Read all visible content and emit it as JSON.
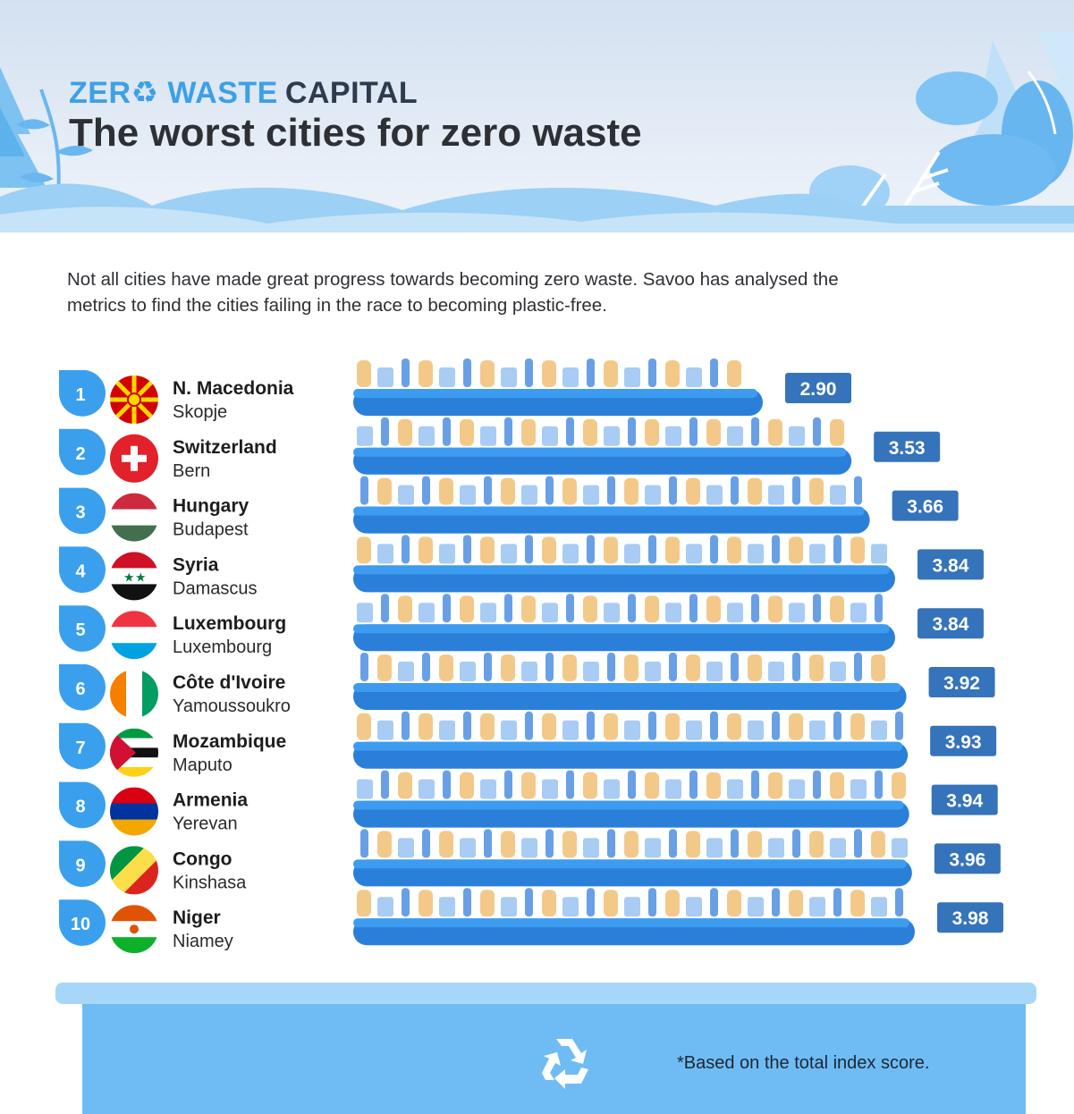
{
  "header": {
    "brand_part1": "ZER♻ WASTE",
    "brand_part2": "CAPITAL",
    "title": "The worst cities for zero waste"
  },
  "intro": {
    "line1": "Not all cities have made great progress towards becoming zero waste. Savoo has analysed the",
    "line2": "metrics to find the cities failing in the race to becoming plastic-free."
  },
  "footnote": "*Based on the total index score.",
  "colors": {
    "bar": "#2a7fd9",
    "bar_highlight": "#3d9cf0",
    "badge": "#3573ba",
    "rank_drop": "#3aa0ee",
    "brand_accent": "#3da0e6"
  },
  "chart_data": {
    "type": "bar",
    "orientation": "horizontal",
    "title": "The worst cities for zero waste",
    "xlim": [
      0,
      4
    ],
    "categories": [
      "N. Macedonia",
      "Switzerland",
      "Hungary",
      "Syria",
      "Luxembourg",
      "Côte d'Ivoire",
      "Mozambique",
      "Armenia",
      "Congo",
      "Niger"
    ],
    "cities": [
      "Skopje",
      "Bern",
      "Budapest",
      "Damascus",
      "Luxembourg",
      "Yamoussoukro",
      "Maputo",
      "Yerevan",
      "Kinshasa",
      "Niamey"
    ],
    "ranks": [
      "1",
      "2",
      "3",
      "4",
      "5",
      "6",
      "7",
      "8",
      "9",
      "10"
    ],
    "flag_icons": [
      "north-macedonia-flag-icon",
      "switzerland-flag-icon",
      "hungary-flag-icon",
      "syria-flag-icon",
      "luxembourg-flag-icon",
      "cote-divoire-flag-icon",
      "mozambique-flag-icon",
      "armenia-flag-icon",
      "congo-flag-icon",
      "niger-flag-icon"
    ],
    "values": [
      2.9,
      3.53,
      3.66,
      3.84,
      3.84,
      3.92,
      3.93,
      3.94,
      3.96,
      3.98
    ],
    "value_labels": [
      "2.90",
      "3.53",
      "3.66",
      "3.84",
      "3.84",
      "3.92",
      "3.93",
      "3.94",
      "3.96",
      "3.98"
    ],
    "grid": false,
    "legend": "none"
  }
}
